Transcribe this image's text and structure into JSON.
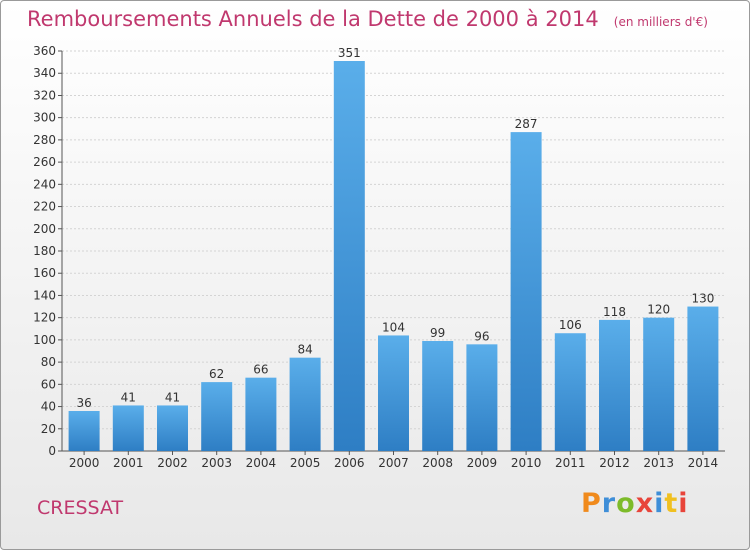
{
  "header": {
    "title": "Remboursements Annuels de la Dette de 2000 à 2014",
    "unit": "(en milliers d'€)"
  },
  "footer": {
    "place": "CRESSAT",
    "logo_text": "Proxiti",
    "logo_colors": [
      "#f08a1c",
      "#3e8ed8",
      "#7dbb2a",
      "#e8443a",
      "#3e8ed8",
      "#f0c020",
      "#e8443a"
    ]
  },
  "colors": {
    "bar_top": "#5aaeea",
    "bar_bottom": "#2e7ec4",
    "accent": "#c0386e"
  },
  "chart_data": {
    "type": "bar",
    "categories": [
      "2000",
      "2001",
      "2002",
      "2003",
      "2004",
      "2005",
      "2006",
      "2007",
      "2008",
      "2009",
      "2010",
      "2011",
      "2012",
      "2013",
      "2014"
    ],
    "values": [
      36,
      41,
      41,
      62,
      66,
      84,
      351,
      104,
      99,
      96,
      287,
      106,
      118,
      120,
      130
    ],
    "title": "Remboursements Annuels de la Dette de 2000 à 2014",
    "xlabel": "",
    "ylabel": "",
    "ylim": [
      0,
      360
    ],
    "yticks": [
      0,
      20,
      40,
      60,
      80,
      100,
      120,
      140,
      160,
      180,
      200,
      220,
      240,
      260,
      280,
      300,
      320,
      340,
      360
    ],
    "grid": true,
    "legend": "none"
  }
}
